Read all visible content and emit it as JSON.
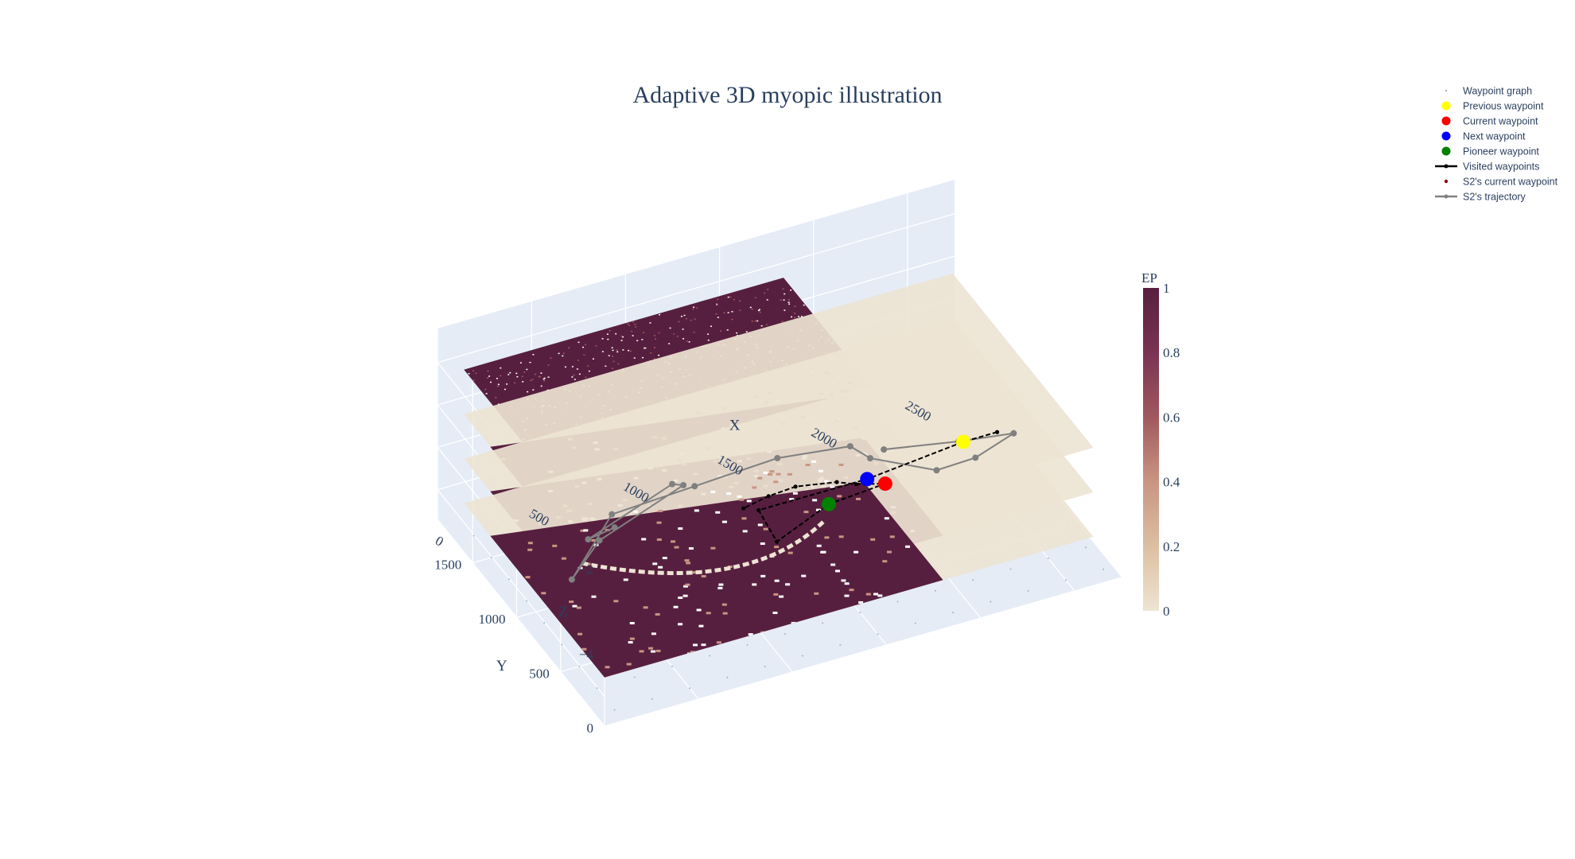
{
  "chart_data": {
    "type": "scatter3d",
    "title": "Adaptive 3D myopic illustration",
    "axes": {
      "x": {
        "title": "X",
        "range": [
          0,
          2750
        ],
        "ticks": [
          0,
          500,
          1000,
          1500,
          2000,
          2500
        ]
      },
      "y": {
        "title": "Y",
        "range": [
          0,
          1900
        ],
        "ticks": [
          0,
          500,
          1000,
          1500
        ]
      },
      "z": {
        "title": "Z",
        "range": [
          -5.7,
          -1.2
        ],
        "ticks": [
          -2,
          -4
        ],
        "tick_labels": [
          "−2",
          "−4"
        ]
      }
    },
    "layers": [
      {
        "z": -1.4,
        "extent": [
          0,
          1700,
          0,
          1600
        ],
        "style": "noisy"
      },
      {
        "z": -2.45,
        "extent": [
          0,
          2600,
          0,
          1600
        ],
        "style": "corridor"
      },
      {
        "z": -3.5,
        "extent": [
          0,
          2600,
          0,
          1600
        ],
        "style": "corridor"
      },
      {
        "z": -4.55,
        "extent": [
          0,
          2600,
          0,
          1600
        ],
        "style": "corridor"
      }
    ],
    "colorbar": {
      "title": "EP",
      "range": [
        0,
        1
      ],
      "ticks": [
        "0",
        "0.2",
        "0.4",
        "0.6",
        "0.8",
        "1"
      ],
      "colors": [
        "#ede4d3",
        "#dcbfa2",
        "#c99582",
        "#a0585f",
        "#7a3353",
        "#571f3f"
      ]
    },
    "markers": {
      "previous": {
        "x": 2170,
        "y": 560,
        "z": -3.2
      },
      "current": {
        "x": 1820,
        "y": 700,
        "z": -4.1
      },
      "next": {
        "x": 1640,
        "y": 520,
        "z": -3.3
      },
      "pioneer": {
        "x": 1520,
        "y": 700,
        "z": -4.2
      }
    },
    "visited_path": [
      [
        2350,
        560,
        -3.2
      ],
      [
        2170,
        560,
        -3.2
      ],
      [
        1640,
        520,
        -3.3
      ],
      [
        1100,
        600,
        -3.55
      ],
      [
        1150,
        500,
        -4.1
      ],
      [
        1520,
        700,
        -4.2
      ],
      [
        1820,
        700,
        -4.1
      ],
      [
        1760,
        900,
        -4.55
      ],
      [
        1750,
        1100,
        -5.0
      ],
      [
        1600,
        1250,
        -5.3
      ],
      [
        1480,
        1300,
        -5.5
      ],
      [
        1300,
        1200,
        -5.3
      ]
    ],
    "s2_trajectory": [
      [
        100,
        100,
        -1.4
      ],
      [
        100,
        400,
        -2.45
      ],
      [
        500,
        300,
        -1.4
      ],
      [
        700,
        600,
        -2.45
      ],
      [
        300,
        700,
        -3.5
      ],
      [
        200,
        800,
        -4.55
      ],
      [
        600,
        1200,
        -4.55
      ],
      [
        900,
        900,
        -3.5
      ],
      [
        1200,
        600,
        -2.45
      ],
      [
        1400,
        200,
        -1.4
      ],
      [
        1600,
        400,
        -2.45
      ],
      [
        2000,
        500,
        -3.5
      ],
      [
        2300,
        700,
        -4.1
      ],
      [
        2550,
        800,
        -4.1
      ],
      [
        2350,
        1000,
        -4.55
      ],
      [
        2000,
        1100,
        -4.55
      ]
    ],
    "legend": [
      {
        "label": "Waypoint graph",
        "symbol": "tiny-dot",
        "color": "#7a9bb5"
      },
      {
        "label": "Previous waypoint",
        "symbol": "dot",
        "color": "#ffff00"
      },
      {
        "label": "Current waypoint",
        "symbol": "dot",
        "color": "#ff0000"
      },
      {
        "label": "Next waypoint",
        "symbol": "dot",
        "color": "#0000ff"
      },
      {
        "label": "Pioneer waypoint",
        "symbol": "dot",
        "color": "#008000"
      },
      {
        "label": "Visited waypoints",
        "symbol": "line-dot",
        "color": "#000000"
      },
      {
        "label": "S2's current waypoint",
        "symbol": "small-dot",
        "color": "#8b0000"
      },
      {
        "label": "S2's trajectory",
        "symbol": "line-dot",
        "color": "#808080"
      }
    ],
    "scene_background": "#e5ecf6",
    "grid_color": "#ffffff",
    "legend_position": "top-right"
  }
}
